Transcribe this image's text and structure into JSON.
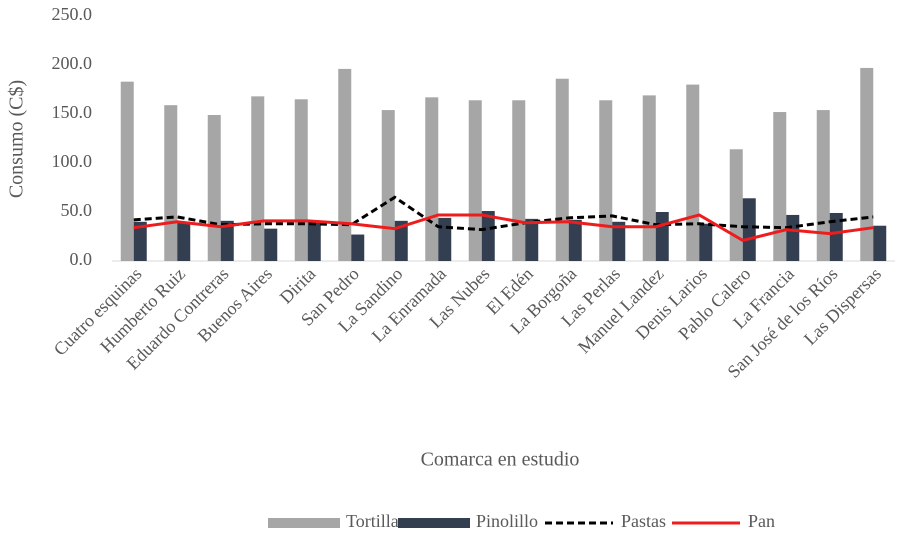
{
  "chart_data": {
    "type": "bar_line",
    "x_label": "Comarca en estudio",
    "y_label": "Consumo (C$)",
    "categories": [
      "Cuatro esquinas",
      "Humberto Ruiz",
      "Eduardo Contreras",
      "Buenos Aires",
      "Dirita",
      "San Pedro",
      "La Sandino",
      "La Enramada",
      "Las Nubes",
      "El Edén",
      "La Borgoña",
      "Las Perlas",
      "Manuel Landez",
      "Denis Larios",
      "Pablo Calero",
      "La Francia",
      "San José de los Ríos",
      "Las Dispersas"
    ],
    "series": [
      {
        "name": "Tortilla",
        "type": "bar",
        "color": "#a6a6a6",
        "values": [
          183,
          159,
          149,
          168,
          165,
          196,
          154,
          167,
          164,
          164,
          186,
          164,
          169,
          180,
          114,
          152,
          154,
          197
        ]
      },
      {
        "name": "Pinolillo",
        "type": "bar",
        "color": "#333f50",
        "values": [
          40,
          40,
          41,
          33,
          40,
          27,
          41,
          44,
          51,
          43,
          42,
          40,
          50,
          38,
          64,
          47,
          49,
          36
        ]
      },
      {
        "name": "Pastas",
        "type": "line",
        "color": "#000000",
        "dashed": true,
        "values": [
          42,
          45,
          37,
          38,
          38,
          37,
          65,
          35,
          32,
          39,
          44,
          46,
          37,
          38,
          35,
          34,
          40,
          45
        ]
      },
      {
        "name": "Pan",
        "type": "line",
        "color": "#ee1c1c",
        "dashed": false,
        "values": [
          34,
          40,
          35,
          41,
          41,
          38,
          33,
          47,
          47,
          39,
          40,
          35,
          35,
          47,
          21,
          32,
          28,
          34
        ]
      }
    ],
    "ylim": [
      0,
      250
    ],
    "yticks": [
      {
        "value": 0,
        "label": "0.0"
      },
      {
        "value": 50,
        "label": "50.0"
      },
      {
        "value": 100,
        "label": "100.0"
      },
      {
        "value": 150,
        "label": "150.0"
      },
      {
        "value": 200,
        "label": "200.0"
      },
      {
        "value": 250,
        "label": "250.0"
      }
    ],
    "legend": "bottom"
  }
}
